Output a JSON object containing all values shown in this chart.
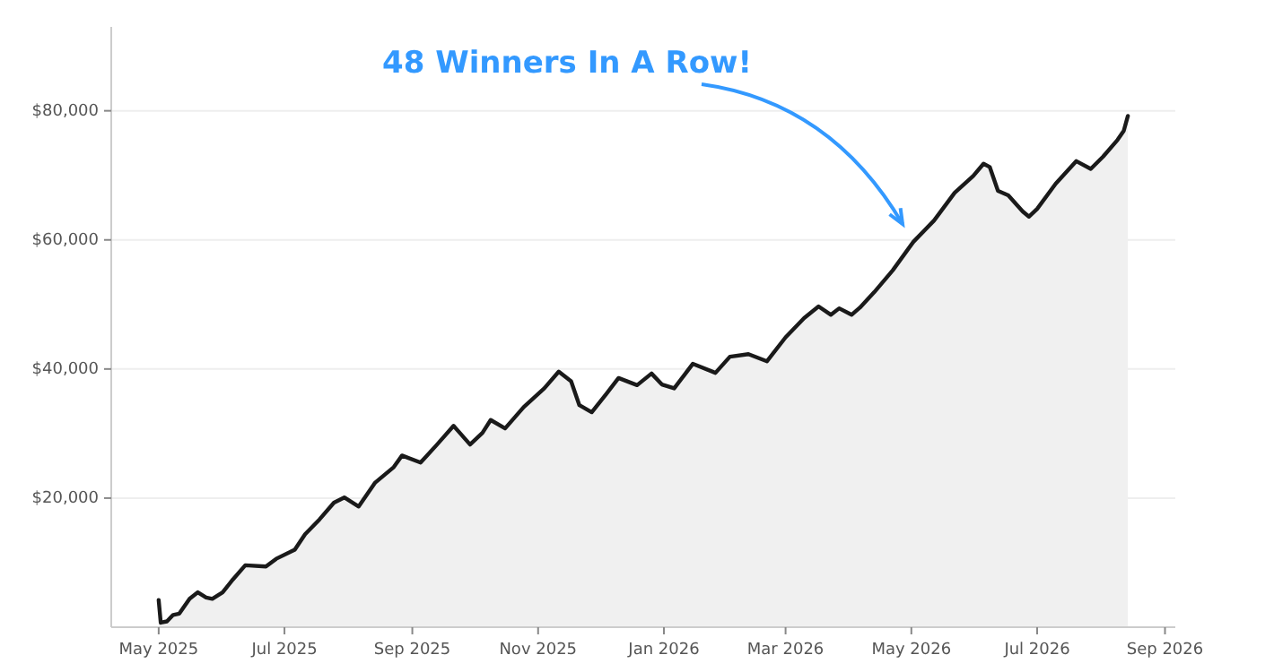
{
  "chart_data": {
    "type": "area",
    "annotations": [
      "48 Winners In A Row!"
    ],
    "xlim": [
      "2025-04-08",
      "2026-09-06"
    ],
    "xticks": [
      {
        "value": "2025-05-01",
        "label": "May 2025"
      },
      {
        "value": "2025-07-01",
        "label": "Jul 2025"
      },
      {
        "value": "2025-09-01",
        "label": "Sep 2025"
      },
      {
        "value": "2025-11-01",
        "label": "Nov 2025"
      },
      {
        "value": "2026-01-01",
        "label": "Jan 2026"
      },
      {
        "value": "2026-03-01",
        "label": "Mar 2026"
      },
      {
        "value": "2026-05-01",
        "label": "May 2026"
      },
      {
        "value": "2026-07-01",
        "label": "Jul 2026"
      },
      {
        "value": "2026-09-01",
        "label": "Sep 2026"
      }
    ],
    "ylim": [
      0,
      93000
    ],
    "yticks": [
      {
        "value": 20000,
        "label": "$20,000"
      },
      {
        "value": 40000,
        "label": "$40,000"
      },
      {
        "value": 60000,
        "label": "$60,000"
      },
      {
        "value": 80000,
        "label": "$80,000"
      }
    ],
    "grid": "y",
    "marker": "none",
    "line_style": "solid",
    "x": [
      "2025-05-01",
      "2025-05-02",
      "2025-05-05",
      "2025-05-08",
      "2025-05-11",
      "2025-05-16",
      "2025-05-20",
      "2025-05-24",
      "2025-05-27",
      "2025-06-01",
      "2025-06-06",
      "2025-06-12",
      "2025-06-22",
      "2025-06-27",
      "2025-07-06",
      "2025-07-11",
      "2025-07-18",
      "2025-07-25",
      "2025-07-30",
      "2025-08-06",
      "2025-08-14",
      "2025-08-23",
      "2025-08-27",
      "2025-09-05",
      "2025-09-13",
      "2025-09-21",
      "2025-09-29",
      "2025-10-05",
      "2025-10-09",
      "2025-10-16",
      "2025-10-25",
      "2025-11-04",
      "2025-11-11",
      "2025-11-17",
      "2025-11-21",
      "2025-11-27",
      "2025-12-04",
      "2025-12-10",
      "2025-12-19",
      "2025-12-26",
      "2025-12-31",
      "2026-01-06",
      "2026-01-15",
      "2026-01-26",
      "2026-02-02",
      "2026-02-11",
      "2026-02-20",
      "2026-03-01",
      "2026-03-10",
      "2026-03-17",
      "2026-03-23",
      "2026-03-27",
      "2026-04-02",
      "2026-04-06",
      "2026-04-13",
      "2026-04-22",
      "2026-05-02",
      "2026-05-12",
      "2026-05-22",
      "2026-05-31",
      "2026-06-05",
      "2026-06-08",
      "2026-06-12",
      "2026-06-17",
      "2026-06-24",
      "2026-06-27",
      "2026-07-01",
      "2026-07-10",
      "2026-07-20",
      "2026-07-27",
      "2026-08-02",
      "2026-08-09",
      "2026-08-12",
      "2026-08-14"
    ],
    "series": [
      {
        "color": "#1a1a1a",
        "values": [
          4200,
          700,
          900,
          1900,
          2100,
          4400,
          5400,
          4600,
          4400,
          5400,
          7400,
          9600,
          9400,
          10600,
          12000,
          14400,
          16700,
          19300,
          20100,
          18700,
          22400,
          24800,
          26600,
          25500,
          28300,
          31200,
          28300,
          30100,
          32100,
          30800,
          34100,
          37000,
          39600,
          38100,
          34400,
          33300,
          36100,
          38600,
          37500,
          39300,
          37600,
          37000,
          40800,
          39400,
          41900,
          42300,
          41200,
          44900,
          47900,
          49700,
          48400,
          49400,
          48400,
          49500,
          51900,
          55300,
          59700,
          63000,
          67300,
          69900,
          71800,
          71300,
          67600,
          66900,
          64400,
          63600,
          64800,
          68700,
          72200,
          71000,
          72900,
          75500,
          76900,
          79200
        ]
      }
    ]
  }
}
